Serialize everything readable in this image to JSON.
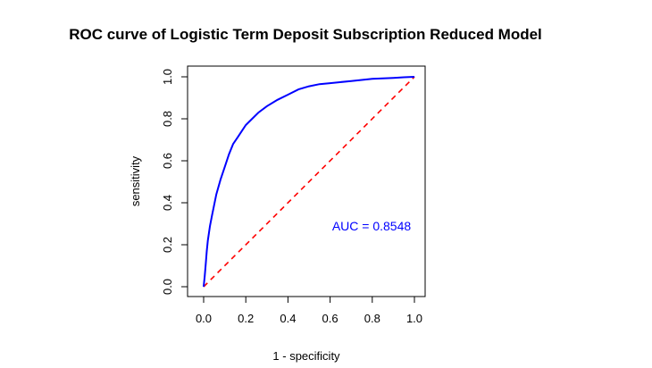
{
  "chart_data": {
    "type": "line",
    "title": "ROC curve of Logistic Term Deposit Subscription Reduced Model",
    "xlabel": "1 - specificity",
    "ylabel": "sensitivity",
    "xlim": [
      0,
      1
    ],
    "ylim": [
      0,
      1
    ],
    "xticks": [
      "0.0",
      "0.2",
      "0.4",
      "0.6",
      "0.8",
      "1.0"
    ],
    "yticks": [
      "0.0",
      "0.2",
      "0.4",
      "0.6",
      "0.8",
      "1.0"
    ],
    "grid": false,
    "annotation": "AUC =  0.8548",
    "colors": {
      "roc": "#0000ff",
      "reference": "#ff0000",
      "annotation": "#0000ff"
    },
    "series": [
      {
        "style": "solid",
        "x": [
          0,
          0.005,
          0.01,
          0.015,
          0.02,
          0.03,
          0.04,
          0.05,
          0.06,
          0.08,
          0.1,
          0.12,
          0.14,
          0.16,
          0.18,
          0.2,
          0.23,
          0.26,
          0.3,
          0.35,
          0.4,
          0.45,
          0.5,
          0.55,
          0.6,
          0.7,
          0.8,
          0.9,
          0.95,
          1.0
        ],
        "y": [
          0,
          0.05,
          0.11,
          0.17,
          0.22,
          0.29,
          0.34,
          0.39,
          0.44,
          0.51,
          0.57,
          0.63,
          0.68,
          0.71,
          0.74,
          0.77,
          0.8,
          0.83,
          0.86,
          0.89,
          0.915,
          0.94,
          0.955,
          0.965,
          0.97,
          0.98,
          0.99,
          0.995,
          0.998,
          1.0
        ]
      },
      {
        "style": "dashed",
        "x": [
          0,
          1
        ],
        "y": [
          0,
          1
        ]
      }
    ]
  }
}
